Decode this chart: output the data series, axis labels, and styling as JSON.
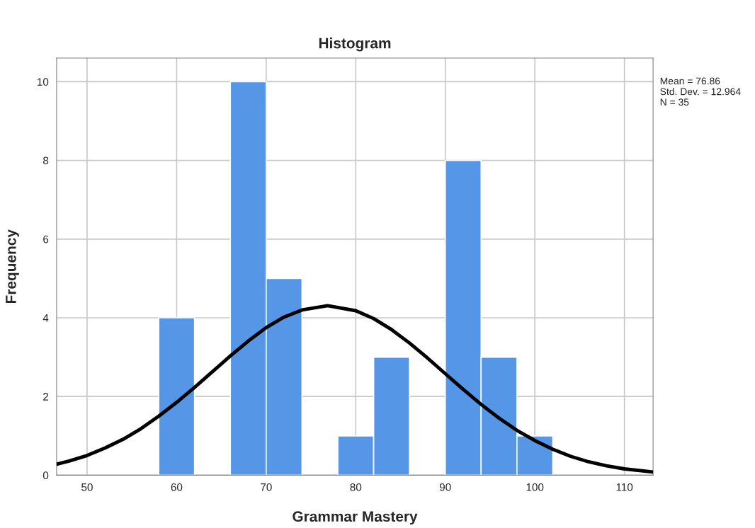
{
  "chart_data": {
    "type": "histogram",
    "title": "Histogram",
    "xlabel": "Grammar Mastery",
    "ylabel": "Frequency",
    "series": [
      {
        "color": "#5596e6",
        "bins": [
          58,
          62,
          66,
          70,
          74,
          78,
          82,
          86,
          90,
          94,
          98,
          102
        ],
        "values": [
          4,
          0,
          10,
          5,
          0,
          1,
          3,
          0,
          8,
          3,
          1
        ]
      },
      {
        "type": "line",
        "color": "#000000",
        "x": [
          46.6,
          48,
          50,
          52,
          54,
          56,
          58,
          60,
          62,
          64,
          66,
          68,
          70,
          72,
          74,
          76.86,
          80,
          82,
          84,
          86,
          88,
          90,
          92,
          94,
          96,
          98,
          100,
          102,
          104,
          106,
          108,
          110,
          113.2
        ],
        "values": [
          0.28,
          0.36,
          0.5,
          0.69,
          0.91,
          1.18,
          1.5,
          1.85,
          2.23,
          2.63,
          3.03,
          3.41,
          3.75,
          4.02,
          4.2,
          4.31,
          4.18,
          3.98,
          3.7,
          3.36,
          2.98,
          2.58,
          2.18,
          1.8,
          1.45,
          1.14,
          0.88,
          0.66,
          0.48,
          0.34,
          0.24,
          0.16,
          0.08
        ]
      }
    ],
    "xlim": [
      46.6,
      113.2
    ],
    "ylim": [
      0,
      10.6
    ],
    "xticks": [
      50,
      60,
      70,
      80,
      90,
      100,
      110
    ],
    "yticks": [
      0,
      2,
      4,
      6,
      8,
      10
    ],
    "grid": true,
    "annotations": [
      "Mean = 76.86",
      "Std. Dev. = 12.964",
      "N = 35"
    ]
  }
}
